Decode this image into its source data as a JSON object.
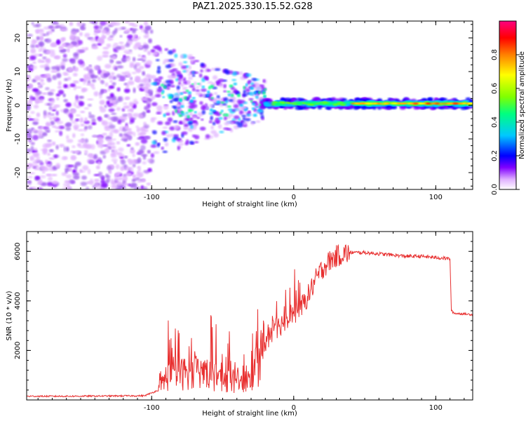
{
  "title": "PAZ1.2025.330.15.52.G28",
  "chart_data": [
    {
      "type": "heatmap",
      "title": "PAZ1.2025.330.15.52.G28",
      "xlabel": "Height of straight line (km)",
      "ylabel": "Frequency (Hz)",
      "xlim": [
        -188,
        126
      ],
      "ylim": [
        -25,
        25
      ],
      "xticks": [
        "-100",
        "0",
        "100"
      ],
      "yticks": [
        "-20",
        "-10",
        "0",
        "10",
        "20"
      ],
      "colorbar": {
        "label": "Normalized spectral amplitude",
        "range": [
          0,
          1
        ],
        "ticks": [
          "0.0",
          "0.2",
          "0.4",
          "0.6",
          "0.8"
        ],
        "colormap": [
          "#ffffff",
          "#e0b0ff",
          "#8000ff",
          "#0000ff",
          "#00c8ff",
          "#00ff80",
          "#80ff00",
          "#ffff00",
          "#ff8000",
          "#ff0000",
          "#ff0080"
        ]
      },
      "description_regions": {
        "noise_region_km": [
          -188,
          -100
        ],
        "signal_line_freq_hz": 0.5
      }
    },
    {
      "type": "line",
      "xlabel": "Height of straight line (km)",
      "ylabel": "SNR (10 * v/v)",
      "xlim": [
        -188,
        126
      ],
      "ylim": [
        0,
        6800
      ],
      "xticks": [
        "-100",
        "0",
        "100"
      ],
      "yticks": [
        "2000",
        "4000",
        "6000"
      ],
      "color": "#e83030",
      "series": [
        {
          "name": "SNR",
          "x": [
            -188,
            -160,
            -130,
            -105,
            -95,
            -90,
            -85,
            -80,
            -75,
            -70,
            -65,
            -60,
            -55,
            -50,
            -45,
            -40,
            -35,
            -30,
            -25,
            -20,
            -15,
            -10,
            -5,
            0,
            5,
            10,
            15,
            20,
            25,
            30,
            35,
            40,
            50,
            60,
            70,
            80,
            90,
            100,
            110,
            111,
            113,
            126
          ],
          "y": [
            150,
            150,
            160,
            170,
            400,
            900,
            1100,
            1000,
            1150,
            1050,
            1200,
            1000,
            1000,
            900,
            800,
            700,
            700,
            900,
            1500,
            2300,
            2800,
            3000,
            3300,
            3500,
            3700,
            4200,
            4800,
            5300,
            5600,
            5800,
            5900,
            5950,
            5950,
            5900,
            5850,
            5800,
            5800,
            5750,
            5700,
            3600,
            3500,
            3450
          ]
        }
      ]
    }
  ]
}
